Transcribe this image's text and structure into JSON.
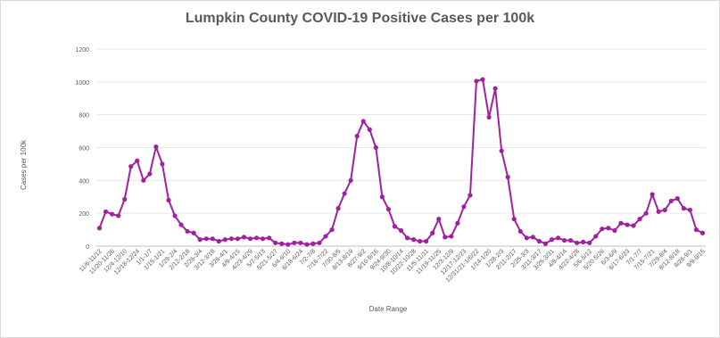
{
  "chart_data": {
    "type": "line",
    "title": "Lumpkin County COVID-19 Positive Cases per 100k",
    "xlabel": "Date Range",
    "ylabel": "Cases per 100k",
    "ylim": [
      0,
      1200
    ],
    "yticks": [
      0,
      200,
      400,
      600,
      800,
      1000,
      1200
    ],
    "grid": true,
    "legend": "none",
    "color": "#a020a0",
    "tick_labels": [
      "11/6-11/12",
      "11/20-11/26",
      "12/4-12/10",
      "12/18-12/24",
      "1/1-1/7",
      "1/15-1/21",
      "1/29-2/4",
      "2/12-2/18",
      "2/26-3/4",
      "3/12-3/18",
      "3/26-4/1",
      "4/9-4/15",
      "4/23-4/29",
      "5/7-5/13",
      "5/21-5/27",
      "6/4-6/10",
      "6/18-6/24",
      "7/2-7/8",
      "7/16-7/22",
      "7/30-8/5",
      "8/13-8/19",
      "8/27-9/2",
      "9/10-9/16",
      "9/24-9/30",
      "10/8-10/14",
      "10/22-10/28",
      "11/5-11/11",
      "11/19-11/25",
      "12/3-12/9",
      "12/17-12/23",
      "12/31/21-1/6/22",
      "1/14-1/20",
      "1/28-2/3",
      "2/11-2/17",
      "2/25-3/3",
      "3/11-3/17",
      "3/25-3/31",
      "4/8-4/14",
      "4/22-4/28",
      "5/6-5/12",
      "5/20-5/26",
      "6/3-6/9",
      "6/17-6/23",
      "7/1-7/7",
      "7/15-7/21",
      "7/29-8/4",
      "8/12-8/18",
      "8/26-9/1",
      "9/9-9/15"
    ],
    "values": [
      110,
      210,
      195,
      185,
      285,
      485,
      520,
      400,
      440,
      605,
      500,
      280,
      185,
      130,
      90,
      80,
      40,
      45,
      45,
      30,
      40,
      45,
      45,
      55,
      45,
      50,
      45,
      50,
      20,
      15,
      10,
      20,
      20,
      10,
      15,
      20,
      60,
      100,
      230,
      320,
      400,
      670,
      760,
      710,
      600,
      300,
      225,
      120,
      95,
      50,
      40,
      30,
      30,
      80,
      165,
      55,
      60,
      140,
      240,
      310,
      1005,
      1015,
      785,
      960,
      580,
      420,
      165,
      90,
      50,
      55,
      30,
      15,
      40,
      50,
      35,
      35,
      20,
      25,
      20,
      60,
      105,
      110,
      95,
      140,
      130,
      125,
      165,
      200,
      315,
      210,
      220,
      275,
      290,
      230,
      220,
      100,
      80
    ]
  }
}
